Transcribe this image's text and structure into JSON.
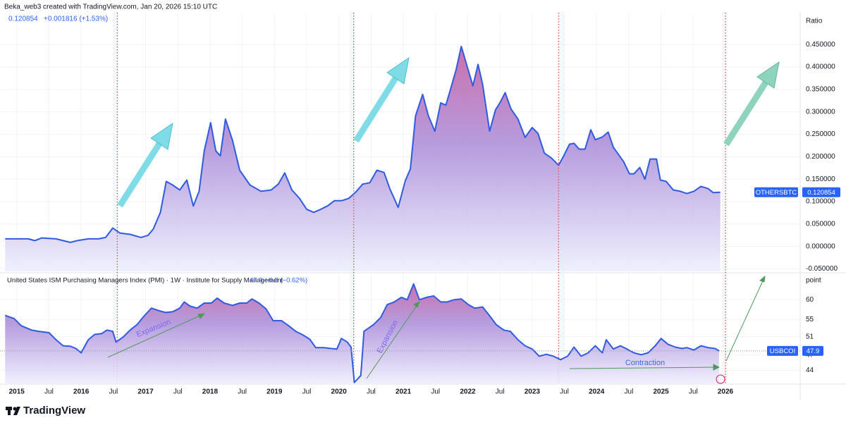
{
  "header": "Beka_web3 created with TradingView.com, Jan 20, 2026 15:10 UTC",
  "logo": "TradingView",
  "chart_data": [
    {
      "type": "area",
      "last": 0.120854,
      "change": "+0.001816 (+1.53%)",
      "scale_label": "Ratio",
      "grid": true,
      "xlim": [
        2014.74,
        2027.16
      ],
      "ylim": [
        -0.0555,
        0.518
      ],
      "yticks": [
        {
          "value": 0.45,
          "label": "0.450000"
        },
        {
          "value": 0.4,
          "label": "0.400000"
        },
        {
          "value": 0.35,
          "label": "0.350000"
        },
        {
          "value": 0.3,
          "label": "0.300000"
        },
        {
          "value": 0.25,
          "label": "0.250000"
        },
        {
          "value": 0.2,
          "label": "0.200000"
        },
        {
          "value": 0.15,
          "label": "0.150000"
        },
        {
          "value": 0.1,
          "label": "0.100000"
        },
        {
          "value": 0.05,
          "label": "0.050000"
        },
        {
          "value": 0,
          "label": "0.000000"
        },
        {
          "value": -0.05,
          "label": "-0.050000"
        }
      ],
      "event_lines": [
        2016.56,
        2020.23,
        2023.41,
        2026.0
      ],
      "series": [
        {
          "name": "OTHERSBTC",
          "color": "#2f5be0",
          "x": [
            2014.82,
            2015.18,
            2015.28,
            2015.39,
            2015.61,
            2015.83,
            2015.94,
            2016.11,
            2016.27,
            2016.38,
            2016.49,
            2016.6,
            2016.76,
            2016.93,
            2017.04,
            2017.12,
            2017.23,
            2017.32,
            2017.42,
            2017.53,
            2017.64,
            2017.74,
            2017.83,
            2017.91,
            2018.01,
            2018.09,
            2018.16,
            2018.24,
            2018.35,
            2018.46,
            2018.62,
            2018.79,
            2018.95,
            2019.06,
            2019.16,
            2019.27,
            2019.39,
            2019.5,
            2019.61,
            2019.72,
            2019.83,
            2019.93,
            2020.04,
            2020.15,
            2020.26,
            2020.37,
            2020.48,
            2020.59,
            2020.7,
            2020.79,
            2020.92,
            2021.03,
            2021.11,
            2021.19,
            2021.3,
            2021.39,
            2021.49,
            2021.58,
            2021.66,
            2021.74,
            2021.82,
            2021.9,
            2021.99,
            2022.08,
            2022.16,
            2022.23,
            2022.34,
            2022.43,
            2022.51,
            2022.58,
            2022.67,
            2022.78,
            2022.89,
            2023.0,
            2023.09,
            2023.19,
            2023.3,
            2023.41,
            2023.49,
            2023.58,
            2023.65,
            2023.73,
            2023.82,
            2023.91,
            2023.98,
            2024.09,
            2024.18,
            2024.26,
            2024.34,
            2024.42,
            2024.51,
            2024.58,
            2024.67,
            2024.75,
            2024.83,
            2024.93,
            2024.99,
            2025.08,
            2025.19,
            2025.3,
            2025.4,
            2025.51,
            2025.62,
            2025.73,
            2025.81,
            2025.92
          ],
          "values": [
            0.017,
            0.017,
            0.013,
            0.019,
            0.017,
            0.009,
            0.013,
            0.017,
            0.017,
            0.02,
            0.041,
            0.03,
            0.027,
            0.02,
            0.025,
            0.039,
            0.076,
            0.145,
            0.137,
            0.126,
            0.148,
            0.09,
            0.123,
            0.213,
            0.276,
            0.213,
            0.202,
            0.284,
            0.236,
            0.17,
            0.137,
            0.123,
            0.126,
            0.139,
            0.164,
            0.126,
            0.107,
            0.083,
            0.076,
            0.083,
            0.091,
            0.102,
            0.102,
            0.107,
            0.121,
            0.139,
            0.142,
            0.17,
            0.165,
            0.129,
            0.087,
            0.146,
            0.173,
            0.291,
            0.339,
            0.291,
            0.257,
            0.32,
            0.315,
            0.354,
            0.394,
            0.446,
            0.402,
            0.358,
            0.406,
            0.362,
            0.257,
            0.304,
            0.323,
            0.343,
            0.307,
            0.284,
            0.243,
            0.265,
            0.252,
            0.208,
            0.197,
            0.181,
            0.202,
            0.228,
            0.23,
            0.217,
            0.217,
            0.26,
            0.238,
            0.244,
            0.255,
            0.221,
            0.205,
            0.189,
            0.162,
            0.162,
            0.176,
            0.15,
            0.195,
            0.195,
            0.148,
            0.145,
            0.126,
            0.123,
            0.118,
            0.123,
            0.134,
            0.129,
            0.12,
            0.121
          ]
        }
      ]
    },
    {
      "type": "area",
      "legend": "United States ISM Purchasing Managers Index (PMI) · 1W · Institute for Supply Management",
      "last": 47.9,
      "change": "−0.3 (−0.62%)",
      "scale_label": "point",
      "log": true,
      "grid": true,
      "xlim": [
        2014.74,
        2027.16
      ],
      "ylim": [
        41.4,
        66.9
      ],
      "yticks": [
        60,
        55,
        51,
        47,
        44
      ],
      "xticks": [
        2015,
        {
          "value": 2015.5,
          "label": "Jul"
        },
        2016,
        {
          "value": 2016.5,
          "label": "Jul"
        },
        2017,
        {
          "value": 2017.5,
          "label": "Jul"
        },
        2018,
        {
          "value": 2018.5,
          "label": "Jul"
        },
        2019,
        {
          "value": 2019.5,
          "label": "Jul"
        },
        2020,
        {
          "value": 2020.5,
          "label": "Jul"
        },
        2021,
        {
          "value": 2021.5,
          "label": "Jul"
        },
        2022,
        {
          "value": 2022.5,
          "label": "Jul"
        },
        2023,
        {
          "value": 2023.5,
          "label": "Jul"
        },
        2024,
        {
          "value": 2024.5,
          "label": "Jul"
        },
        2025,
        {
          "value": 2025.5,
          "label": "Jul"
        },
        2026
      ],
      "annotations": [
        "Expansion",
        "Expansion",
        "Contraction"
      ],
      "series": [
        {
          "name": "USBCOI",
          "color": "#2f5be0",
          "x": [
            2014.82,
            2014.96,
            2015.07,
            2015.23,
            2015.34,
            2015.5,
            2015.61,
            2015.72,
            2015.83,
            2015.92,
            2016.0,
            2016.11,
            2016.21,
            2016.32,
            2016.4,
            2016.49,
            2016.54,
            2016.65,
            2016.76,
            2016.87,
            2016.98,
            2017.09,
            2017.2,
            2017.31,
            2017.42,
            2017.53,
            2017.6,
            2017.69,
            2017.8,
            2017.91,
            2018.02,
            2018.11,
            2018.22,
            2018.35,
            2018.46,
            2018.57,
            2018.65,
            2018.76,
            2018.87,
            2018.98,
            2019.11,
            2019.22,
            2019.33,
            2019.44,
            2019.55,
            2019.64,
            2019.77,
            2019.88,
            2019.97,
            2020.04,
            2020.13,
            2020.19,
            2020.24,
            2020.34,
            2020.39,
            2020.54,
            2020.65,
            2020.75,
            2020.86,
            2020.97,
            2021.06,
            2021.16,
            2021.25,
            2021.36,
            2021.47,
            2021.58,
            2021.68,
            2021.79,
            2021.9,
            2022.01,
            2022.11,
            2022.23,
            2022.34,
            2022.44,
            2022.56,
            2022.66,
            2022.78,
            2022.89,
            2023.0,
            2023.11,
            2023.22,
            2023.33,
            2023.44,
            2023.55,
            2023.65,
            2023.76,
            2023.87,
            2023.98,
            2024.09,
            2024.15,
            2024.26,
            2024.37,
            2024.47,
            2024.58,
            2024.69,
            2024.8,
            2024.91,
            2025.0,
            2025.11,
            2025.22,
            2025.33,
            2025.4,
            2025.51,
            2025.62,
            2025.73,
            2025.84,
            2025.9
          ],
          "values": [
            56.0,
            55.2,
            53.5,
            52.5,
            52.2,
            51.9,
            50.3,
            49.0,
            48.9,
            48.4,
            47.5,
            50.3,
            51.5,
            51.7,
            52.5,
            52.2,
            49.8,
            50.9,
            52.5,
            53.8,
            55.9,
            57.8,
            57.2,
            56.7,
            56.9,
            57.8,
            59.4,
            58.3,
            57.8,
            59.1,
            59.1,
            60.4,
            59.1,
            58.5,
            59.1,
            59.1,
            60.2,
            59.1,
            57.6,
            54.7,
            54.7,
            53.5,
            52.2,
            51.4,
            50.4,
            48.6,
            48.6,
            48.4,
            48.3,
            50.6,
            49.8,
            48.7,
            41.7,
            43.0,
            52.2,
            53.8,
            55.5,
            58.7,
            59.4,
            60.6,
            60.0,
            64.3,
            60.0,
            60.6,
            61.0,
            59.4,
            59.4,
            60.0,
            60.2,
            58.7,
            57.8,
            58.1,
            55.9,
            53.8,
            52.5,
            52.2,
            50.3,
            49.0,
            48.3,
            46.8,
            47.2,
            46.8,
            46.1,
            46.8,
            48.7,
            46.8,
            47.5,
            49.0,
            47.5,
            50.3,
            48.3,
            49.0,
            48.3,
            47.5,
            47.1,
            47.5,
            49.0,
            50.6,
            49.3,
            48.7,
            48.4,
            48.6,
            48.1,
            49.0,
            48.6,
            48.4,
            47.9
          ]
        }
      ]
    }
  ]
}
